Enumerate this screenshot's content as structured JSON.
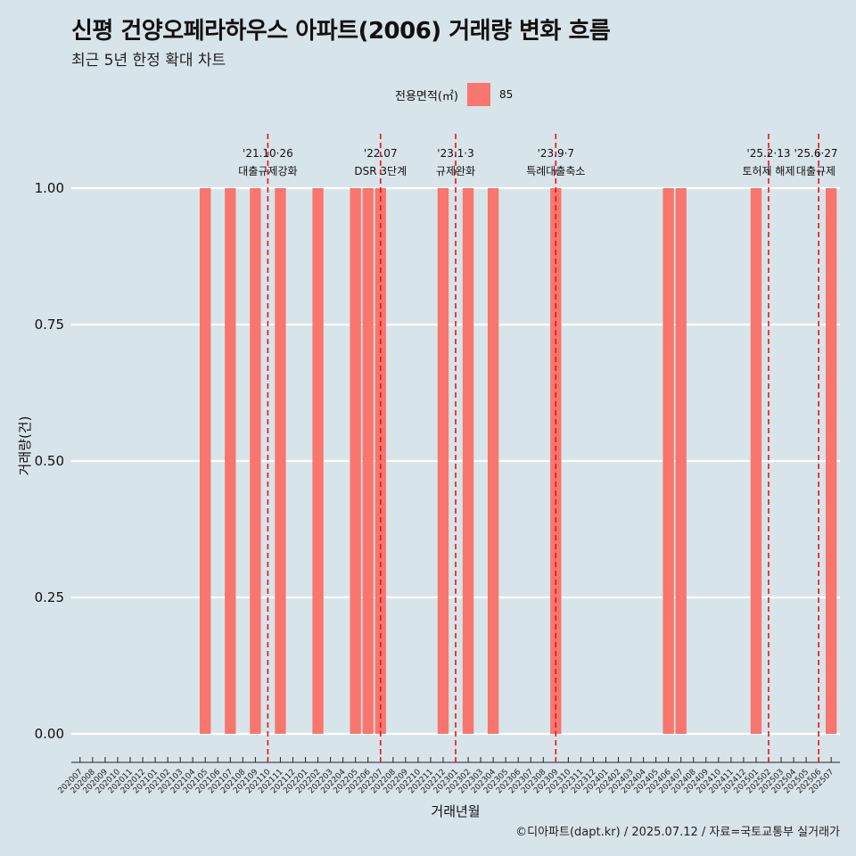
{
  "title": "신평 건양오페라하우스 아파트(2006) 거래량 변화 흐름",
  "subtitle": "최근 5년 한정 확대 차트",
  "legend": {
    "title": "전용면적(㎡)",
    "items": [
      {
        "label": "85",
        "color": "#f8766d"
      }
    ]
  },
  "footer": "©디아파트(dapt.kr) / 2025.07.12 / 자료=국토교통부 실거래가",
  "chart_data": {
    "type": "bar",
    "xlabel": "거래년월",
    "ylabel": "거래량(건)",
    "ylim": [
      0,
      1
    ],
    "yticks": [
      "0.00",
      "0.25",
      "0.50",
      "0.75",
      "1.00"
    ],
    "grid": true,
    "legend_position": "top",
    "categories": [
      "202007",
      "202008",
      "202009",
      "202010",
      "202011",
      "202012",
      "202101",
      "202102",
      "202103",
      "202104",
      "202105",
      "202106",
      "202107",
      "202108",
      "202109",
      "202110",
      "202111",
      "202112",
      "202201",
      "202202",
      "202203",
      "202204",
      "202205",
      "202206",
      "202207",
      "202208",
      "202209",
      "202210",
      "202211",
      "202212",
      "202301",
      "202302",
      "202303",
      "202304",
      "202305",
      "202306",
      "202307",
      "202308",
      "202309",
      "202310",
      "202311",
      "202312",
      "202401",
      "202402",
      "202403",
      "202404",
      "202405",
      "202406",
      "202407",
      "202408",
      "202409",
      "202410",
      "202411",
      "202412",
      "202501",
      "202502",
      "202503",
      "202504",
      "202505",
      "202506",
      "202507"
    ],
    "series": [
      {
        "name": "85",
        "color": "#f8766d",
        "values": [
          0,
          0,
          0,
          0,
          0,
          0,
          0,
          0,
          0,
          0,
          1,
          0,
          1,
          0,
          1,
          0,
          1,
          0,
          0,
          1,
          0,
          0,
          1,
          1,
          1,
          0,
          0,
          0,
          0,
          1,
          0,
          1,
          0,
          1,
          0,
          0,
          0,
          0,
          1,
          0,
          0,
          0,
          0,
          0,
          0,
          0,
          0,
          1,
          1,
          0,
          0,
          0,
          0,
          0,
          1,
          0,
          0,
          0,
          0,
          0,
          1
        ]
      }
    ],
    "annotations": [
      {
        "at": "202110",
        "date": "'21.10·26",
        "text": "대출규제강화"
      },
      {
        "at": "202207",
        "date": "'22.07",
        "text": "DSR 3단계"
      },
      {
        "at": "202301",
        "date": "'23.1·3",
        "text": "규제완화"
      },
      {
        "at": "202309",
        "date": "'23.9·7",
        "text": "특례대출축소"
      },
      {
        "at": "202502",
        "date": "'25.2·13",
        "text": "토허제 해제"
      },
      {
        "at": "202506",
        "date": "'25.6·27",
        "text": "대출규제"
      }
    ]
  }
}
